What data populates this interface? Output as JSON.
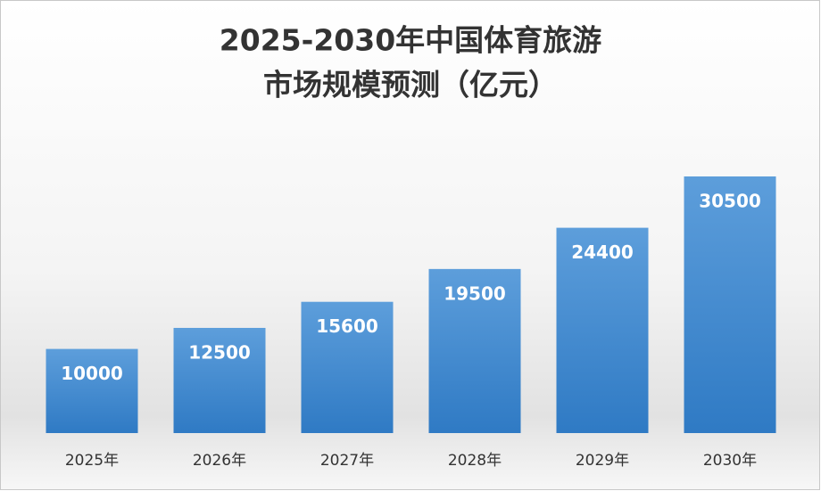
{
  "chart_data": {
    "type": "bar",
    "title": [
      "2025-2030年中国体育旅游",
      "市场规模预测（亿元）"
    ],
    "categories": [
      "2025年",
      "2026年",
      "2027年",
      "2028年",
      "2029年",
      "2030年"
    ],
    "values": [
      10000,
      12500,
      15600,
      19500,
      24400,
      30500
    ],
    "color": "#4a8fd2"
  }
}
